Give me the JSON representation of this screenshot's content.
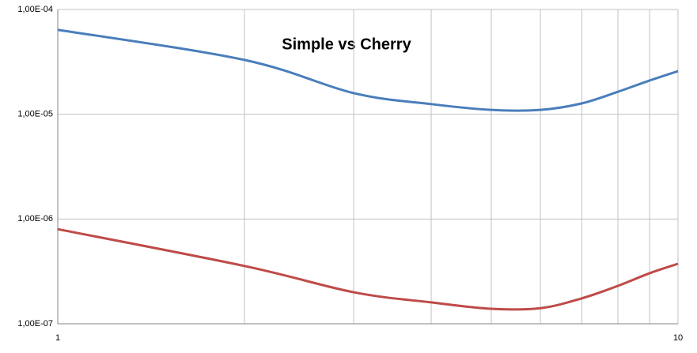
{
  "chart_data": {
    "type": "line",
    "title": "Simple vs Cherry",
    "x": [
      1,
      2,
      3,
      4,
      5,
      6,
      7,
      8,
      9,
      10
    ],
    "series": [
      {
        "color": "#4a7ebb",
        "values": [
          6.4e-05,
          3.3e-05,
          1.59e-05,
          1.25e-05,
          1.1e-05,
          1.1e-05,
          1.27e-05,
          1.64e-05,
          2.1e-05,
          2.58e-05
        ]
      },
      {
        "color": "#be4b48",
        "values": [
          8e-07,
          3.56e-07,
          2e-07,
          1.6e-07,
          1.39e-07,
          1.41e-07,
          1.75e-07,
          2.3e-07,
          3.04e-07,
          3.74e-07
        ]
      }
    ],
    "xlim": [
      1,
      10
    ],
    "ylim": [
      1e-07,
      0.0001
    ],
    "xticks": [
      1,
      {
        "value": 2,
        "label": null
      },
      {
        "value": 3,
        "label": null
      },
      {
        "value": 4,
        "label": null
      },
      {
        "value": 5,
        "label": null
      },
      {
        "value": 6,
        "label": null
      },
      {
        "value": 7,
        "label": null
      },
      {
        "value": 8,
        "label": null
      },
      {
        "value": 9,
        "label": null
      },
      10
    ],
    "yticks": [
      {
        "value": 1e-07,
        "label": "1,00E-07"
      },
      {
        "value": 1e-06,
        "label": "1,00E-06"
      },
      {
        "value": 1e-05,
        "label": "1,00E-05"
      },
      {
        "value": 0.0001,
        "label": "1,00E-04"
      }
    ],
    "xscale": "log",
    "yscale": "log",
    "grid": true
  }
}
